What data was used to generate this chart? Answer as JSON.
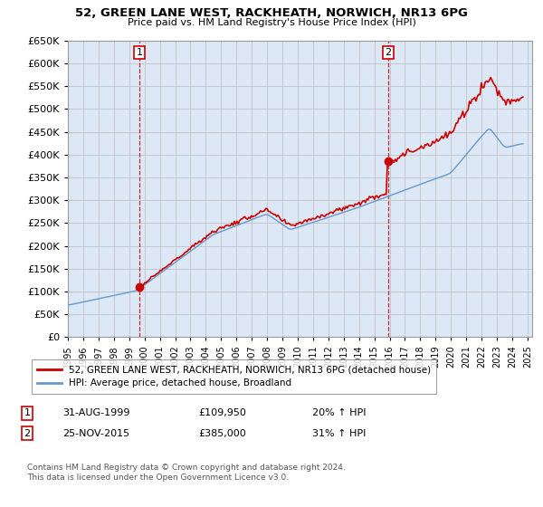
{
  "title": "52, GREEN LANE WEST, RACKHEATH, NORWICH, NR13 6PG",
  "subtitle": "Price paid vs. HM Land Registry's House Price Index (HPI)",
  "legend_line1": "52, GREEN LANE WEST, RACKHEATH, NORWICH, NR13 6PG (detached house)",
  "legend_line2": "HPI: Average price, detached house, Broadland",
  "footnote": "Contains HM Land Registry data © Crown copyright and database right 2024.\nThis data is licensed under the Open Government Licence v3.0.",
  "sale1_label": "1",
  "sale1_date": "31-AUG-1999",
  "sale1_price": "£109,950",
  "sale1_hpi": "20% ↑ HPI",
  "sale2_label": "2",
  "sale2_date": "25-NOV-2015",
  "sale2_price": "£385,000",
  "sale2_hpi": "31% ↑ HPI",
  "sale1_x": 1999.667,
  "sale1_y": 109950,
  "sale2_x": 2015.9,
  "sale2_y": 385000,
  "dashed_line1_x": 1999.667,
  "dashed_line2_x": 2015.9,
  "property_color": "#cc0000",
  "hpi_color": "#6699cc",
  "dashed_color": "#cc0000",
  "plot_bg_color": "#dce8f5",
  "ylim": [
    0,
    650000
  ],
  "xlim_start": 1995.0,
  "xlim_end": 2025.3,
  "background_color": "#ffffff",
  "grid_color": "#bbbbbb"
}
